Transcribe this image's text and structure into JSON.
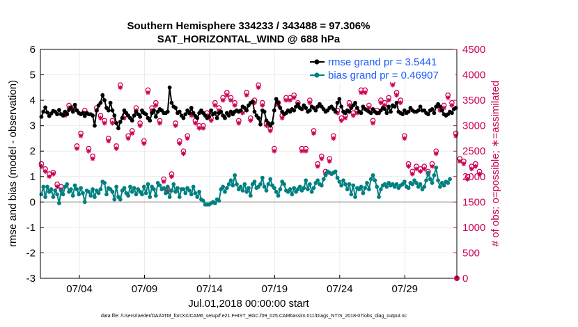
{
  "chart_data": {
    "type": "line",
    "title": "Southern Hemisphere 334233 / 343488 = 97.306%",
    "subtitle": "SAT_HORIZONTAL_WIND @ 688 hPa",
    "xlabel": "Jul.01,2018 00:00:00 start",
    "ylabel": "rmse and bias (model - observation)",
    "y2label": "# of obs: o=possible; ∗=assimilated",
    "xlim": [
      1,
      33
    ],
    "ylim": [
      -3,
      6
    ],
    "y2lim": [
      0,
      4500
    ],
    "x_ticks": [
      4,
      9,
      14,
      19,
      24,
      29
    ],
    "x_tick_labels": [
      "07/04",
      "07/09",
      "07/14",
      "07/19",
      "07/24",
      "07/29"
    ],
    "y_ticks": [
      "-3",
      "-2",
      "-1",
      "0",
      "1",
      "2",
      "3",
      "4",
      "5",
      "6"
    ],
    "y2_ticks": [
      "0",
      "500",
      "1000",
      "1500",
      "2000",
      "2500",
      "3000",
      "3500",
      "4000",
      "4500"
    ],
    "colors": {
      "rmse": "#000000",
      "bias": "#008080",
      "obs": "#cc0055",
      "legend_text": "#1a5cff",
      "zero_line": "#aaaaaa"
    },
    "series": [
      {
        "name": "rmse grand pr = 3.5441",
        "values": [
          3.35,
          3.55,
          3.72,
          3.52,
          3.38,
          3.48,
          3.58,
          3.55,
          3.45,
          3.62,
          3.45,
          3.4,
          3.55,
          3.45,
          3.62,
          3.72,
          3.55,
          3.82,
          3.6,
          3.5,
          3.45,
          3.5,
          3.38,
          3.5,
          3.45,
          3.45,
          3.4,
          3.0,
          3.6,
          3.8,
          3.9,
          4.2,
          4.0,
          3.7,
          3.6,
          3.9,
          3.6,
          3.4,
          3.1,
          2.9,
          3.15,
          3.3,
          3.6,
          3.5,
          3.4,
          3.3,
          3.2,
          3.4,
          3.55,
          3.45,
          3.35,
          3.6,
          3.5,
          3.45,
          3.3,
          3.2,
          3.5,
          3.6,
          3.35,
          3.55,
          3.65,
          3.6,
          3.5,
          3.5,
          3.55,
          4.5,
          3.9,
          3.75,
          3.7,
          3.5,
          3.55,
          3.4,
          3.3,
          3.45,
          3.6,
          3.5,
          3.7,
          3.5,
          3.38,
          3.3,
          3.5,
          3.6,
          3.5,
          3.4,
          3.3,
          3.35,
          3.6,
          3.45,
          3.5,
          3.3,
          3.5,
          3.55,
          3.4,
          3.3,
          3.5,
          3.4,
          3.55,
          3.45,
          3.55,
          3.6,
          3.55,
          3.6,
          3.75,
          3.7,
          3.6,
          3.8,
          3.9,
          3.95,
          3.55,
          3.4,
          3.3,
          3.05,
          3.6,
          3.55,
          3.2,
          3.1,
          3.0,
          3.1,
          3.6,
          4.05,
          3.9,
          3.7,
          3.55,
          3.45,
          3.5,
          3.6,
          3.55,
          3.65,
          3.6,
          3.75,
          3.85,
          3.7,
          3.65,
          3.8,
          3.7,
          3.55,
          3.6,
          3.75,
          3.7,
          3.6,
          3.75,
          3.85,
          3.75,
          3.65,
          3.55,
          3.6,
          3.7,
          3.75,
          3.65,
          3.55,
          3.9,
          4.05,
          3.75,
          3.55,
          3.5,
          3.6,
          3.55,
          3.7,
          3.8,
          3.9,
          3.7,
          3.55,
          3.5,
          3.75,
          3.65,
          3.6,
          3.55,
          3.5,
          3.65,
          3.55,
          3.5,
          3.5,
          3.6,
          3.7,
          3.65,
          3.5,
          3.75,
          3.55,
          3.8,
          3.75,
          3.9,
          3.55,
          3.5,
          3.45,
          3.6,
          3.5,
          3.55,
          3.7,
          3.6,
          3.55,
          3.55,
          3.6,
          3.75,
          3.6,
          3.6,
          3.5,
          3.45,
          3.6,
          3.65,
          3.5,
          3.75,
          3.85,
          3.75,
          3.6,
          3.45,
          3.4,
          3.45,
          3.55,
          3.5,
          3.65,
          3.7
        ]
      },
      {
        "name": "bias grand pr = 0.46907",
        "values": [
          0.3,
          0.6,
          0.2,
          0.6,
          0.4,
          0.5,
          0.2,
          0.45,
          0.3,
          -0.05,
          0.45,
          0.3,
          0.6,
          0.7,
          0.4,
          0.5,
          0.25,
          0.65,
          0.5,
          0.3,
          0.55,
          0.35,
          0.0,
          0.45,
          0.4,
          0.25,
          0.5,
          0.2,
          0.45,
          0.35,
          0.5,
          0.8,
          0.75,
          0.3,
          0.55,
          0.5,
          0.4,
          0.1,
          0.6,
          0.2,
          0.1,
          0.45,
          0.55,
          0.35,
          0.25,
          0.6,
          0.4,
          0.55,
          0.3,
          0.5,
          0.4,
          0.3,
          0.6,
          0.35,
          0.7,
          0.2,
          0.6,
          0.5,
          0.25,
          0.75,
          0.65,
          0.5,
          0.55,
          0.35,
          0.6,
          0.2,
          0.45,
          0.7,
          0.4,
          0.55,
          0.2,
          0.5,
          0.5,
          0.35,
          0.55,
          0.45,
          0.3,
          0.6,
          0.35,
          0.2,
          0.4,
          0.1,
          0.05,
          -0.1,
          -0.1,
          -0.1,
          -0.05,
          0.0,
          -0.05,
          0.1,
          0.05,
          0.5,
          0.6,
          0.4,
          0.55,
          0.7,
          0.85,
          0.65,
          1.05,
          0.7,
          0.5,
          0.6,
          0.45,
          0.7,
          0.4,
          0.55,
          0.25,
          0.7,
          0.8,
          0.55,
          0.6,
          0.7,
          0.95,
          0.6,
          0.45,
          0.7,
          0.9,
          0.65,
          0.55,
          0.4,
          0.25,
          0.5,
          0.8,
          0.7,
          0.45,
          0.4,
          0.5,
          0.3,
          0.55,
          0.4,
          0.5,
          0.6,
          0.45,
          0.55,
          0.85,
          0.5,
          0.7,
          0.4,
          0.55,
          0.75,
          0.85,
          0.7,
          0.65,
          0.9,
          1.05,
          1.2,
          1.15,
          1.1,
          1.15,
          1.2,
          0.95,
          0.8,
          0.65,
          0.85,
          0.7,
          0.5,
          0.7,
          0.3,
          0.65,
          0.2,
          0.55,
          0.5,
          0.6,
          0.35,
          0.55,
          0.75,
          0.5,
          0.9,
          1.05,
          0.85,
          0.6,
          0.2,
          0.5,
          0.65,
          0.7,
          0.6,
          0.75,
          0.65,
          0.7,
          0.6,
          0.7,
          0.55,
          0.65,
          0.7,
          0.8,
          0.6,
          0.55,
          0.75,
          0.7,
          0.85,
          0.75,
          0.6,
          0.7,
          0.5,
          0.6,
          0.85,
          1.15,
          0.9,
          0.75,
          1.05,
          1.35,
          0.85,
          0.6,
          0.75,
          0.65,
          0.8,
          0.75,
          0.9
        ]
      }
    ],
    "obs_possible": [
      2250,
      2100,
      2150,
      2100,
      2050,
      2000,
      2080,
      1900,
      1850,
      1820,
      1800,
      3200,
      3250,
      3300,
      3400,
      3250,
      3350,
      3150,
      2600,
      2750,
      2850,
      3550,
      3300,
      3100,
      2550,
      2500,
      2400,
      3150,
      3350,
      3050,
      3200,
      3700,
      3100,
      2450,
      2750,
      2350,
      3100,
      2450,
      2600,
      3600,
      3800,
      3300,
      3200,
      3050,
      2800,
      2850,
      2900,
      3300,
      3350,
      3600,
      3050,
      2300,
      2700,
      3300,
      3700,
      3400,
      3350,
      3300,
      3450,
      3150,
      3100,
      2050,
      1950,
      1850,
      1750,
      1750,
      2050,
      3150,
      3050,
      2900,
      2700,
      2750,
      2500,
      2650,
      2800,
      3050,
      3250,
      3550,
      3100,
      3150,
      3000,
      3450,
      3000,
      2900,
      3250,
      3250,
      3150,
      3500,
      3450,
      3750,
      3350,
      3300,
      3550,
      3550,
      3650,
      3650,
      3550,
      3550,
      3450,
      3400,
      3100,
      3000,
      3300,
      3550,
      3650,
      3900,
      3150,
      3600,
      3500,
      3300,
      3800,
      3400,
      3450,
      3250,
      3050,
      2950,
      2950,
      2400,
      2550,
      3700,
      3450,
      3300,
      3200,
      3050,
      3550,
      3300,
      3550,
      3550,
      3600,
      3200,
      3450,
      3050,
      2550,
      2700,
      2550,
      3350,
      3500,
      2850,
      2900,
      2300,
      2250,
      2200,
      2400,
      2150,
      2100,
      2200,
      2350,
      2450,
      2800,
      3000,
      3300,
      3350,
      3150,
      3100,
      3200,
      3250,
      3450,
      3350,
      3250,
      3200,
      3300,
      3600,
      3700,
      3300,
      3700,
      3500,
      3400,
      3250,
      3100,
      3050,
      3300,
      3450,
      3500,
      3550,
      3450,
      3350,
      3550,
      3650,
      3850,
      3750,
      3650,
      3700,
      3500,
      3300,
      2800,
      2400,
      2250,
      2150,
      2100,
      2300,
      2200,
      2300,
      2150,
      2450,
      2200,
      2200,
      2100,
      2200,
      2250,
      2450,
      2500,
      3700,
      3350,
      3200,
      3400,
      3550,
      3600,
      3700,
      3450,
      3150,
      2850,
      2400,
      2350,
      2400,
      2300,
      2250,
      2000,
      2100,
      2200,
      2350,
      2250,
      2000,
      2100
    ],
    "obs_assimilated": [
      2200,
      2050,
      2100,
      2050,
      2000,
      1950,
      2050,
      1850,
      1800,
      1800,
      1750,
      3150,
      3200,
      3250,
      3350,
      3200,
      3300,
      3100,
      2550,
      2700,
      2800,
      3500,
      3250,
      3050,
      2500,
      2450,
      2350,
      3100,
      3300,
      3000,
      3150,
      3650,
      3050,
      2400,
      2700,
      2300,
      3050,
      2400,
      2550,
      3550,
      3750,
      3250,
      3150,
      3000,
      2750,
      2800,
      2850,
      3250,
      3300,
      3550,
      3000,
      2250,
      2650,
      3250,
      3650,
      3350,
      3300,
      3250,
      3400,
      3100,
      3050,
      2000,
      1900,
      1800,
      1700,
      1700,
      2000,
      3100,
      3000,
      2850,
      2650,
      2700,
      2450,
      2600,
      2750,
      3000,
      3200,
      3500,
      3050,
      3100,
      2950,
      3400,
      2950,
      2850,
      3200,
      3200,
      3100,
      3450,
      3400,
      3700,
      3300,
      3250,
      3500,
      3500,
      3600,
      3600,
      3500,
      3500,
      3400,
      3350,
      3050,
      2950,
      3250,
      3500,
      3600,
      3850,
      3100,
      3550,
      3450,
      3250,
      3750,
      3350,
      3400,
      3200,
      3000,
      2900,
      2900,
      2350,
      2500,
      3650,
      3400,
      3250,
      3150,
      3000,
      3500,
      3250,
      3500,
      3500,
      3550,
      3150,
      3400,
      3000,
      2500,
      2650,
      2500,
      3300,
      3450,
      2800,
      2850,
      2250,
      2200,
      2150,
      2350,
      2100,
      2050,
      2150,
      2300,
      2400,
      2750,
      2950,
      3250,
      3300,
      3100,
      3050,
      3150,
      3200,
      3400,
      3300,
      3200,
      3150,
      3250,
      3550,
      3650,
      3250,
      3650,
      3450,
      3350,
      3200,
      3050,
      3000,
      3250,
      3400,
      3450,
      3500,
      3400,
      3300,
      3500,
      3600,
      3800,
      3700,
      3600,
      3650,
      3450,
      3250,
      2750,
      2350,
      2200,
      2100,
      2050,
      2250,
      2150,
      2250,
      2100,
      2400,
      2150,
      2150,
      2050,
      2150,
      2200,
      2400,
      2450,
      3650,
      3300,
      3150,
      3350,
      3500,
      3550,
      3650,
      3400,
      3100,
      2800,
      2350,
      2300,
      2350,
      2250,
      2200,
      1950,
      2050,
      2150,
      2300,
      2200,
      1950,
      2050
    ]
  },
  "footer": "data file: /Users/raeder/DAI/ATM_forcXX/CAM6_setup/f.e21.FHIST_BGC.f09_025.CAM6assim.011/Diags_NTrS_2018-07/obs_diag_output.nc"
}
